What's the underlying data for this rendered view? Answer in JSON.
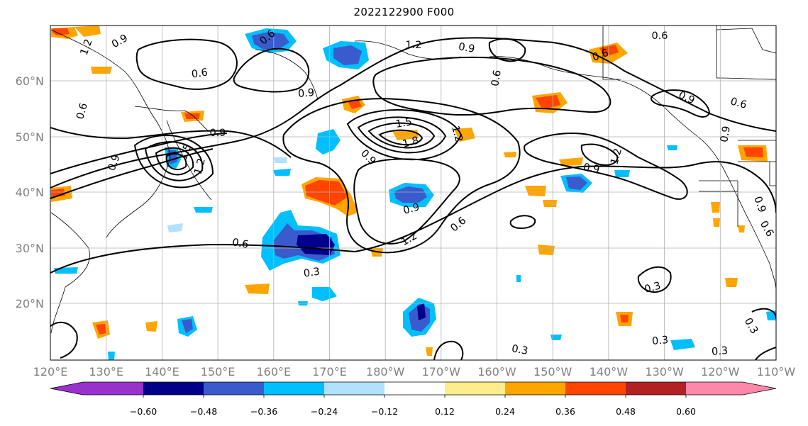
{
  "map": {
    "title": "2022122900 F000",
    "lat_labels": [
      "60°N",
      "50°N",
      "40°N",
      "30°N",
      "20°N"
    ],
    "lon_labels": [
      "120°E",
      "130°E",
      "140°E",
      "150°E",
      "160°E",
      "170°E",
      "180°W",
      "170°W",
      "160°W",
      "150°W",
      "140°W",
      "130°W",
      "120°W",
      "110°W"
    ],
    "colorbar": {
      "colors": [
        "#9932cc",
        "#00008b",
        "#3a5bcd",
        "#00bfff",
        "#b0e2ff",
        "#ffffff",
        "#ffec8b",
        "#ffa500",
        "#ff4500",
        "#b22222",
        "#ff88aa"
      ],
      "tick_labels": [
        "−0.60",
        "−0.48",
        "−0.36",
        "−0.24",
        "−0.12",
        "0.12",
        "0.24",
        "0.36",
        "0.48",
        "0.60"
      ]
    },
    "contour_labels": [
      "0.6",
      "0.9",
      "1.2",
      "0.9",
      "0.6",
      "0.9",
      "0.6",
      "0.9",
      "0.9",
      "1.2",
      "0.9",
      "0.6",
      "0.6",
      "0.9",
      "0.6",
      "0.6",
      "0.9",
      "1.2",
      "0.9",
      "0.9",
      "1.2",
      "0.6",
      "0.6",
      "0.3",
      "0.3",
      "0.3",
      "0.3",
      "0.3",
      "0.6",
      "0.9",
      "1.2",
      "1.5",
      "1.8",
      "1.5",
      "1.2",
      "0.3"
    ]
  }
}
